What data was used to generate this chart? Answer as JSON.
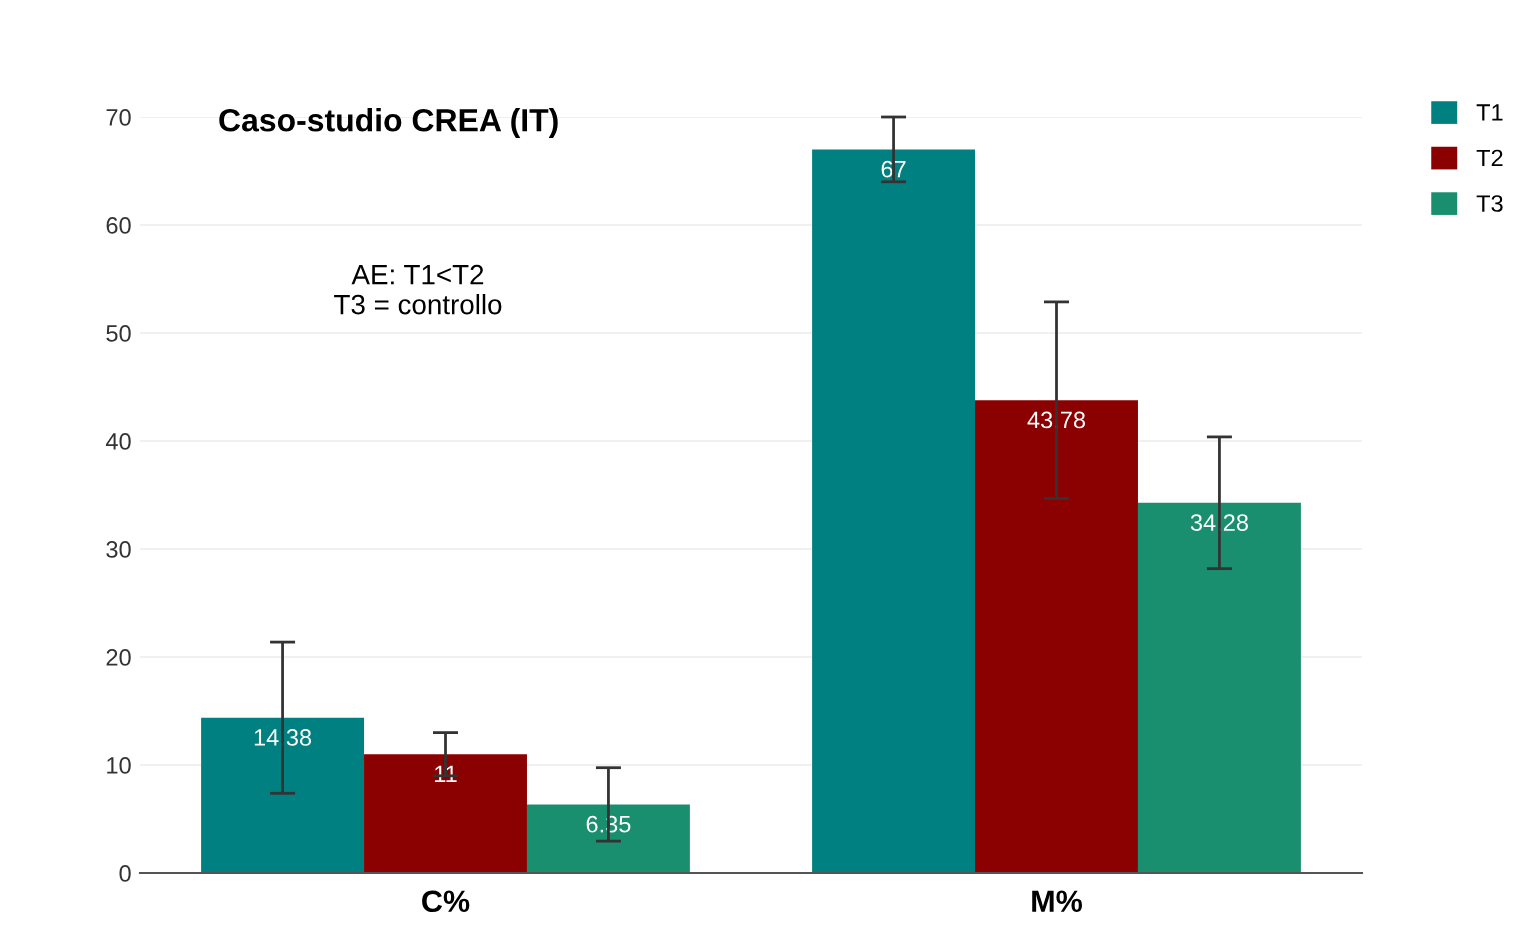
{
  "chart_data": {
    "type": "bar",
    "title": "Caso-studio CREA (IT)",
    "annotations": [
      "AE: T1<T2\nT3 = controllo"
    ],
    "categories": [
      "C%",
      "M%"
    ],
    "series": [
      {
        "name": "T1",
        "color": "#008080",
        "values": [
          14.38,
          67
        ],
        "value_labels": [
          "14.38",
          "67"
        ],
        "errors": [
          7.0,
          3.0
        ]
      },
      {
        "name": "T2",
        "color": "#8b0000",
        "values": [
          11,
          43.78
        ],
        "value_labels": [
          "11",
          "43.78"
        ],
        "errors": [
          2.0,
          9.1
        ]
      },
      {
        "name": "T3",
        "color": "#1a8f6f",
        "values": [
          6.35,
          34.28
        ],
        "value_labels": [
          "6.35",
          "34.28"
        ],
        "errors": [
          3.4,
          6.1
        ]
      }
    ],
    "ylim": [
      0,
      70
    ],
    "yticks": [
      0,
      10,
      20,
      30,
      40,
      50,
      60,
      70
    ],
    "grid": "y",
    "legend": "top right"
  }
}
